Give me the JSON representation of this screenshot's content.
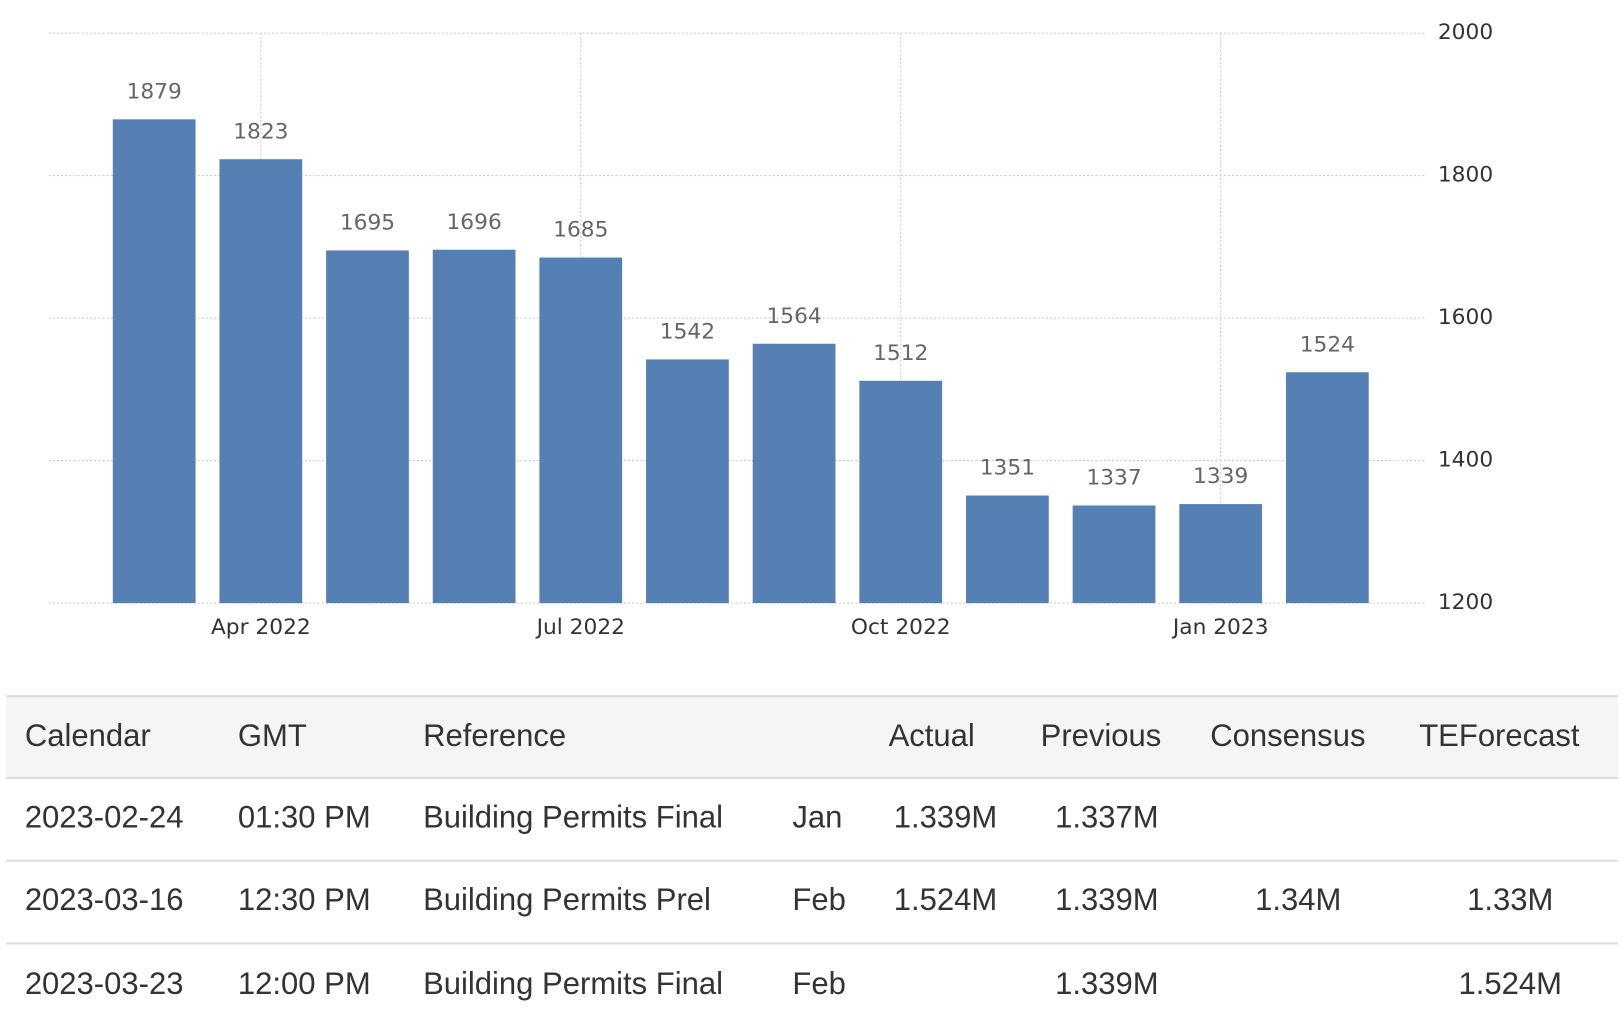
{
  "chart_data": {
    "type": "bar",
    "categories": [
      null,
      "Apr 2022",
      null,
      null,
      "Jul 2022",
      null,
      null,
      "Oct 2022",
      null,
      null,
      "Jan 2023",
      null
    ],
    "values": [
      1879,
      1823,
      1695,
      1696,
      1685,
      1542,
      1564,
      1512,
      1351,
      1337,
      1339,
      1524
    ],
    "color": "#5480b4",
    "ylim": [
      1200,
      2000
    ],
    "yticks": [
      1200,
      1400,
      1600,
      1800,
      2000
    ],
    "grid": true,
    "value_axis_side": "right",
    "data_labels": true
  },
  "table": {
    "headers": [
      "Calendar",
      "GMT",
      "Reference",
      "Actual",
      "Previous",
      "Consensus",
      "TEForecast"
    ],
    "rows": [
      {
        "calendar": "2023-02-24",
        "gmt": "01:30 PM",
        "reference": "Building Permits Final",
        "period": "Jan",
        "actual": "1.339M",
        "previous": "1.337M"
      },
      {
        "calendar": "2023-03-16",
        "gmt": "12:30 PM",
        "reference": "Building Permits Prel",
        "period": "Feb",
        "actual": "1.524M",
        "previous": "1.339M",
        "consensus": "1.34M",
        "teforecast": "1.33M"
      },
      {
        "calendar": "2023-03-23",
        "gmt": "12:00 PM",
        "reference": "Building Permits Final",
        "period": "Feb",
        "previous": "1.339M",
        "teforecast": "1.524M"
      }
    ]
  }
}
